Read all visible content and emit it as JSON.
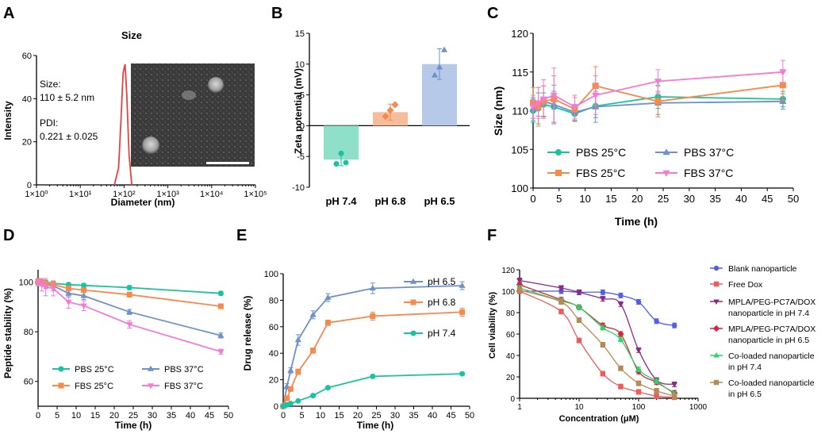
{
  "colors": {
    "teal": "#19c3a0",
    "blue": "#6f91c9",
    "orange": "#f58a4d",
    "pink": "#f27bd6",
    "red": "#e8413d",
    "blank_np": "#4f60e6",
    "free_dox": "#ef5a5a",
    "mpla74": "#8b2a8b",
    "mpla65": "#d6263b",
    "co74": "#2ad66a",
    "co65": "#b58a56"
  },
  "chart_data": [
    {
      "panel": "A",
      "type": "line",
      "title": "Size",
      "xlabel": "Diameter (nm)",
      "ylabel": "Intensity",
      "xscale": "log",
      "xlim": [
        1,
        100000
      ],
      "ylim": [
        0,
        60
      ],
      "yticks": [
        0,
        20,
        40,
        60
      ],
      "xtick_labels": [
        "1×10⁰",
        "1×10¹",
        "1×10²",
        "1×10³",
        "1×10⁴",
        "1×10⁵"
      ],
      "annotations": {
        "size_label": "Size:",
        "size_value": "110 ± 5.2 nm",
        "pdi_label": "PDI:",
        "pdi_value": "0.221 ± 0.025"
      },
      "inset": "TEM micrograph",
      "series": [
        {
          "name": "Intensity",
          "x": [
            60,
            75,
            85,
            95,
            105,
            115,
            130,
            150
          ],
          "y": [
            0,
            8,
            30,
            52,
            56,
            42,
            14,
            0
          ]
        }
      ]
    },
    {
      "panel": "B",
      "type": "bar",
      "ylabel": "Zeta potential (mV)",
      "ylim": [
        -10,
        15
      ],
      "yticks": [
        -10,
        -5,
        0,
        5,
        10,
        15
      ],
      "categories": [
        "pH 7.4",
        "pH 6.8",
        "pH 6.5"
      ],
      "values": [
        -5.5,
        2.2,
        10.0
      ],
      "errors": [
        1.0,
        1.3,
        2.5
      ],
      "points": [
        [
          -6.2,
          -4.5,
          -6.0
        ],
        [
          1.5,
          2.5,
          3.4
        ],
        [
          8.2,
          9.5,
          12.3
        ]
      ]
    },
    {
      "panel": "C",
      "type": "line",
      "xlabel": "Time (h)",
      "ylabel": "Size (nm)",
      "xlim": [
        0,
        50
      ],
      "ylim": [
        100,
        120
      ],
      "xticks": [
        0,
        5,
        10,
        15,
        20,
        25,
        30,
        35,
        40,
        45,
        50
      ],
      "yticks": [
        100,
        105,
        110,
        115,
        120
      ],
      "x": [
        0,
        1,
        2,
        4,
        8,
        12,
        24,
        48
      ],
      "series": [
        {
          "name": "PBS 25°C",
          "values": [
            110.0,
            110.3,
            110.8,
            110.5,
            109.6,
            110.6,
            111.8,
            111.5
          ],
          "errors": [
            1.5,
            2.0,
            1.5,
            2.0,
            1.0,
            1.5,
            1.5,
            1.0
          ]
        },
        {
          "name": "PBS 37°C",
          "values": [
            110.2,
            110.8,
            111.2,
            110.8,
            109.8,
            110.5,
            111.0,
            111.2
          ],
          "errors": [
            1.5,
            1.5,
            2.0,
            2.5,
            1.0,
            2.0,
            1.5,
            1.0
          ]
        },
        {
          "name": "FBS 25°C",
          "values": [
            111.0,
            110.5,
            111.2,
            111.5,
            110.2,
            113.2,
            111.2,
            113.3
          ],
          "errors": [
            2.0,
            2.5,
            2.0,
            3.0,
            1.5,
            2.5,
            2.0,
            2.0
          ]
        },
        {
          "name": "FBS 37°C",
          "values": [
            110.5,
            111.0,
            111.5,
            112.0,
            110.5,
            112.0,
            113.8,
            115.0
          ],
          "errors": [
            1.5,
            2.0,
            2.5,
            3.5,
            1.5,
            2.5,
            1.5,
            1.5
          ]
        }
      ]
    },
    {
      "panel": "D",
      "type": "line",
      "xlabel": "Time (h)",
      "ylabel": "Peptide stability (%)",
      "xlim": [
        0,
        50
      ],
      "ylim": [
        50,
        105
      ],
      "xticks": [
        0,
        5,
        10,
        15,
        20,
        25,
        30,
        35,
        40,
        45,
        50
      ],
      "yticks": [
        60,
        80,
        100
      ],
      "x": [
        0,
        1,
        2,
        4,
        8,
        12,
        24,
        48
      ],
      "series": [
        {
          "name": "PBS 25°C",
          "values": [
            100.5,
            100.2,
            100.0,
            99.5,
            99.0,
            98.7,
            97.8,
            95.5
          ],
          "errors": [
            0.8,
            0.8,
            0.8,
            0.8,
            0.8,
            0.8,
            0.8,
            0.8
          ]
        },
        {
          "name": "PBS 37°C",
          "values": [
            100.0,
            99.8,
            99.0,
            98.5,
            95.5,
            94.5,
            88.0,
            78.5
          ],
          "errors": [
            1.0,
            1.0,
            1.5,
            2.0,
            1.5,
            1.5,
            1.0,
            1.0
          ]
        },
        {
          "name": "FBS 25°C",
          "values": [
            100.2,
            100.0,
            99.5,
            99.0,
            97.5,
            96.8,
            95.0,
            90.3
          ],
          "errors": [
            0.8,
            0.8,
            1.0,
            1.0,
            1.0,
            1.0,
            1.0,
            0.8
          ]
        },
        {
          "name": "FBS 37°C",
          "values": [
            100.0,
            99.0,
            98.0,
            97.5,
            92.0,
            90.5,
            83.0,
            72.0
          ],
          "errors": [
            1.5,
            2.5,
            3.5,
            3.0,
            2.5,
            2.0,
            1.5,
            1.0
          ]
        }
      ]
    },
    {
      "panel": "E",
      "type": "line",
      "xlabel": "Time (h)",
      "ylabel": "Drug release (%)",
      "xlim": [
        0,
        50
      ],
      "ylim": [
        0,
        100
      ],
      "xticks": [
        0,
        5,
        10,
        15,
        20,
        25,
        30,
        35,
        40,
        45,
        50
      ],
      "yticks": [
        0,
        20,
        40,
        60,
        80,
        100
      ],
      "x": [
        0,
        1,
        2,
        4,
        8,
        12,
        24,
        48
      ],
      "series": [
        {
          "name": "pH 6.5",
          "values": [
            0,
            15,
            27,
            50,
            69,
            82,
            89,
            91
          ],
          "errors": [
            0,
            2,
            2,
            4,
            3,
            3,
            4,
            3
          ]
        },
        {
          "name": "pH 6.8",
          "values": [
            0,
            6,
            13,
            26,
            42,
            63,
            68,
            71
          ],
          "errors": [
            0,
            1,
            1,
            2,
            2,
            2,
            3,
            3
          ]
        },
        {
          "name": "pH 7.4",
          "values": [
            0,
            1,
            2,
            4,
            8,
            14,
            22.5,
            24.5
          ],
          "errors": [
            0,
            0.5,
            0.5,
            0.5,
            0.5,
            1,
            1,
            1
          ]
        }
      ]
    },
    {
      "panel": "F",
      "type": "scatter",
      "xlabel": "Concentration (μM)",
      "ylabel": "Cell viability (%)",
      "xscale": "log",
      "xlim": [
        1,
        1000
      ],
      "ylim": [
        0,
        120
      ],
      "yticks": [
        0,
        20,
        40,
        60,
        80,
        100,
        120
      ],
      "xtick_labels": [
        "1",
        "10",
        "100",
        "1000"
      ],
      "x": [
        1,
        5,
        10,
        25,
        50,
        100,
        200,
        400
      ],
      "series": [
        {
          "name": "Blank nanoparticle",
          "values": [
            100,
            100,
            99,
            99,
            96,
            90,
            72,
            68
          ]
        },
        {
          "name": "Free Dox",
          "values": [
            100,
            81,
            54,
            23,
            11,
            6,
            2,
            1
          ]
        },
        {
          "name": "MPLA/PEG-PC7A/DOX nanoparticle in pH 7.4",
          "values": [
            110,
            103,
            99,
            93,
            88,
            45,
            17,
            13
          ]
        },
        {
          "name": "MPLA/PEG-PC7A/DOX nanoparticle in pH 6.5",
          "values": [
            106,
            92,
            85,
            68,
            60,
            25,
            15,
            5
          ]
        },
        {
          "name": "Co-loaded nanoparticle in pH 7.4",
          "values": [
            103,
            91,
            85,
            66,
            55,
            27,
            16,
            4
          ]
        },
        {
          "name": "Co-loaded nanoparticle in pH 6.5",
          "values": [
            101,
            90,
            73,
            50,
            28,
            14,
            7,
            2
          ]
        }
      ]
    }
  ],
  "labels": {
    "panelA": "A",
    "panelB": "B",
    "panelC": "C",
    "panelD": "D",
    "panelE": "E",
    "panelF": "F",
    "a_title": "Size",
    "a_xlabel": "Diameter (nm)",
    "a_ylabel": "Intensity",
    "a_size": "Size:",
    "a_size_v": "110 ± 5.2 nm",
    "a_pdi": "PDI:",
    "a_pdi_v": "0.221 ± 0.025",
    "b_ylabel": "Zeta potential (mV)",
    "c_xlabel": "Time (h)",
    "c_ylabel": "Size (nm)",
    "d_xlabel": "Time (h)",
    "d_ylabel": "Peptide stability (%)",
    "e_xlabel": "Time (h)",
    "e_ylabel": "Drug release (%)",
    "f_xlabel": "Concentration (μM)",
    "f_ylabel": "Cell viability (%)"
  },
  "legendF": [
    [
      "Blank nanoparticle"
    ],
    [
      "Free Dox"
    ],
    [
      "MPLA/PEG-PC7A/DOX",
      "nanoparticle in pH 7.4"
    ],
    [
      "MPLA/PEG-PC7A/DOX",
      "nanoparticle in pH 6.5"
    ],
    [
      "Co-loaded nanoparticle",
      "in pH 7.4"
    ],
    [
      "Co-loaded nanoparticle",
      "in pH 6.5"
    ]
  ]
}
